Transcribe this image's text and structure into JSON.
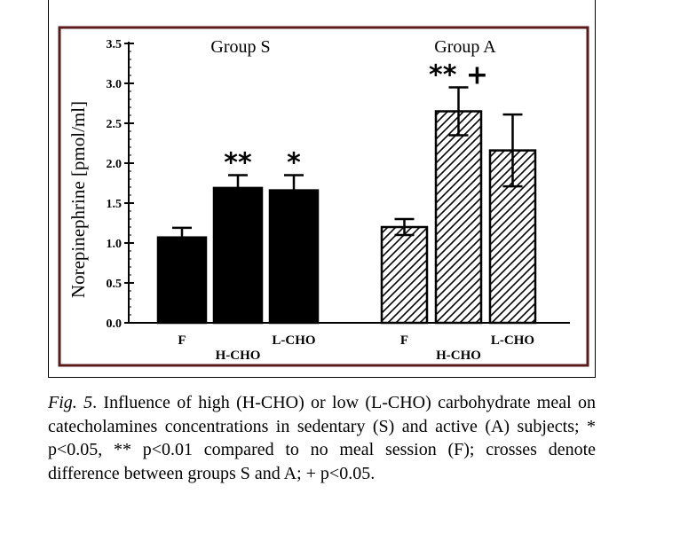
{
  "chart_data": {
    "type": "bar",
    "ylabel": "Norepinephrine [pmol/ml]",
    "ylim": [
      0,
      3.5
    ],
    "yticks": [
      "0.0",
      "0.5",
      "1.0",
      "1.5",
      "2.0",
      "2.5",
      "3.0",
      "3.5"
    ],
    "groups": [
      {
        "name": "Group S",
        "fill": "solid",
        "categories": [
          "F",
          "H-CHO",
          "L-CHO"
        ],
        "values": [
          1.07,
          1.69,
          1.66
        ],
        "errors": [
          0.12,
          0.16,
          0.19
        ],
        "annotations": [
          "",
          "**",
          "*"
        ]
      },
      {
        "name": "Group A",
        "fill": "hatched",
        "categories": [
          "F",
          "H-CHO",
          "L-CHO"
        ],
        "values": [
          1.2,
          2.65,
          2.16
        ],
        "errors": [
          0.1,
          0.3,
          0.45
        ],
        "annotations": [
          "",
          "** +",
          ""
        ]
      }
    ]
  },
  "caption": {
    "label": "Fig. 5",
    "text": ". Influence of high (H-CHO) or low (L-CHO) carbohydrate meal on catecholamines concentrations in sedentary (S) and active (A) subjects; * p<0.05, ** p<0.01 compared to no meal session (F); crosses denote difference between groups S and A; + p<0.05."
  },
  "colors": {
    "frame": "#5a1a1a",
    "bars": "#000000",
    "background": "#ffffff"
  }
}
